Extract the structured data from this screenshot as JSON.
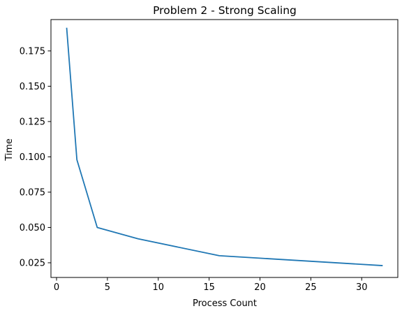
{
  "chart_data": {
    "type": "line",
    "title": "Problem 2 - Strong Scaling",
    "xlabel": "Process Count",
    "ylabel": "Time",
    "xlim": [
      -0.55,
      33.55
    ],
    "ylim": [
      0.0146,
      0.1972
    ],
    "xticks": [
      0,
      5,
      10,
      15,
      20,
      25,
      30
    ],
    "xtick_labels": [
      "0",
      "5",
      "10",
      "15",
      "20",
      "25",
      "30"
    ],
    "yticks": [
      0.025,
      0.05,
      0.075,
      0.1,
      0.125,
      0.15,
      0.175
    ],
    "ytick_labels": [
      "0.025",
      "0.050",
      "0.075",
      "0.100",
      "0.125",
      "0.150",
      "0.175"
    ],
    "grid": false,
    "legend": false,
    "series": [
      {
        "x": [
          1,
          2,
          4,
          8,
          16,
          32
        ],
        "values": [
          0.191,
          0.098,
          0.05,
          0.042,
          0.03,
          0.023
        ],
        "color": "#1f77b4"
      }
    ]
  }
}
